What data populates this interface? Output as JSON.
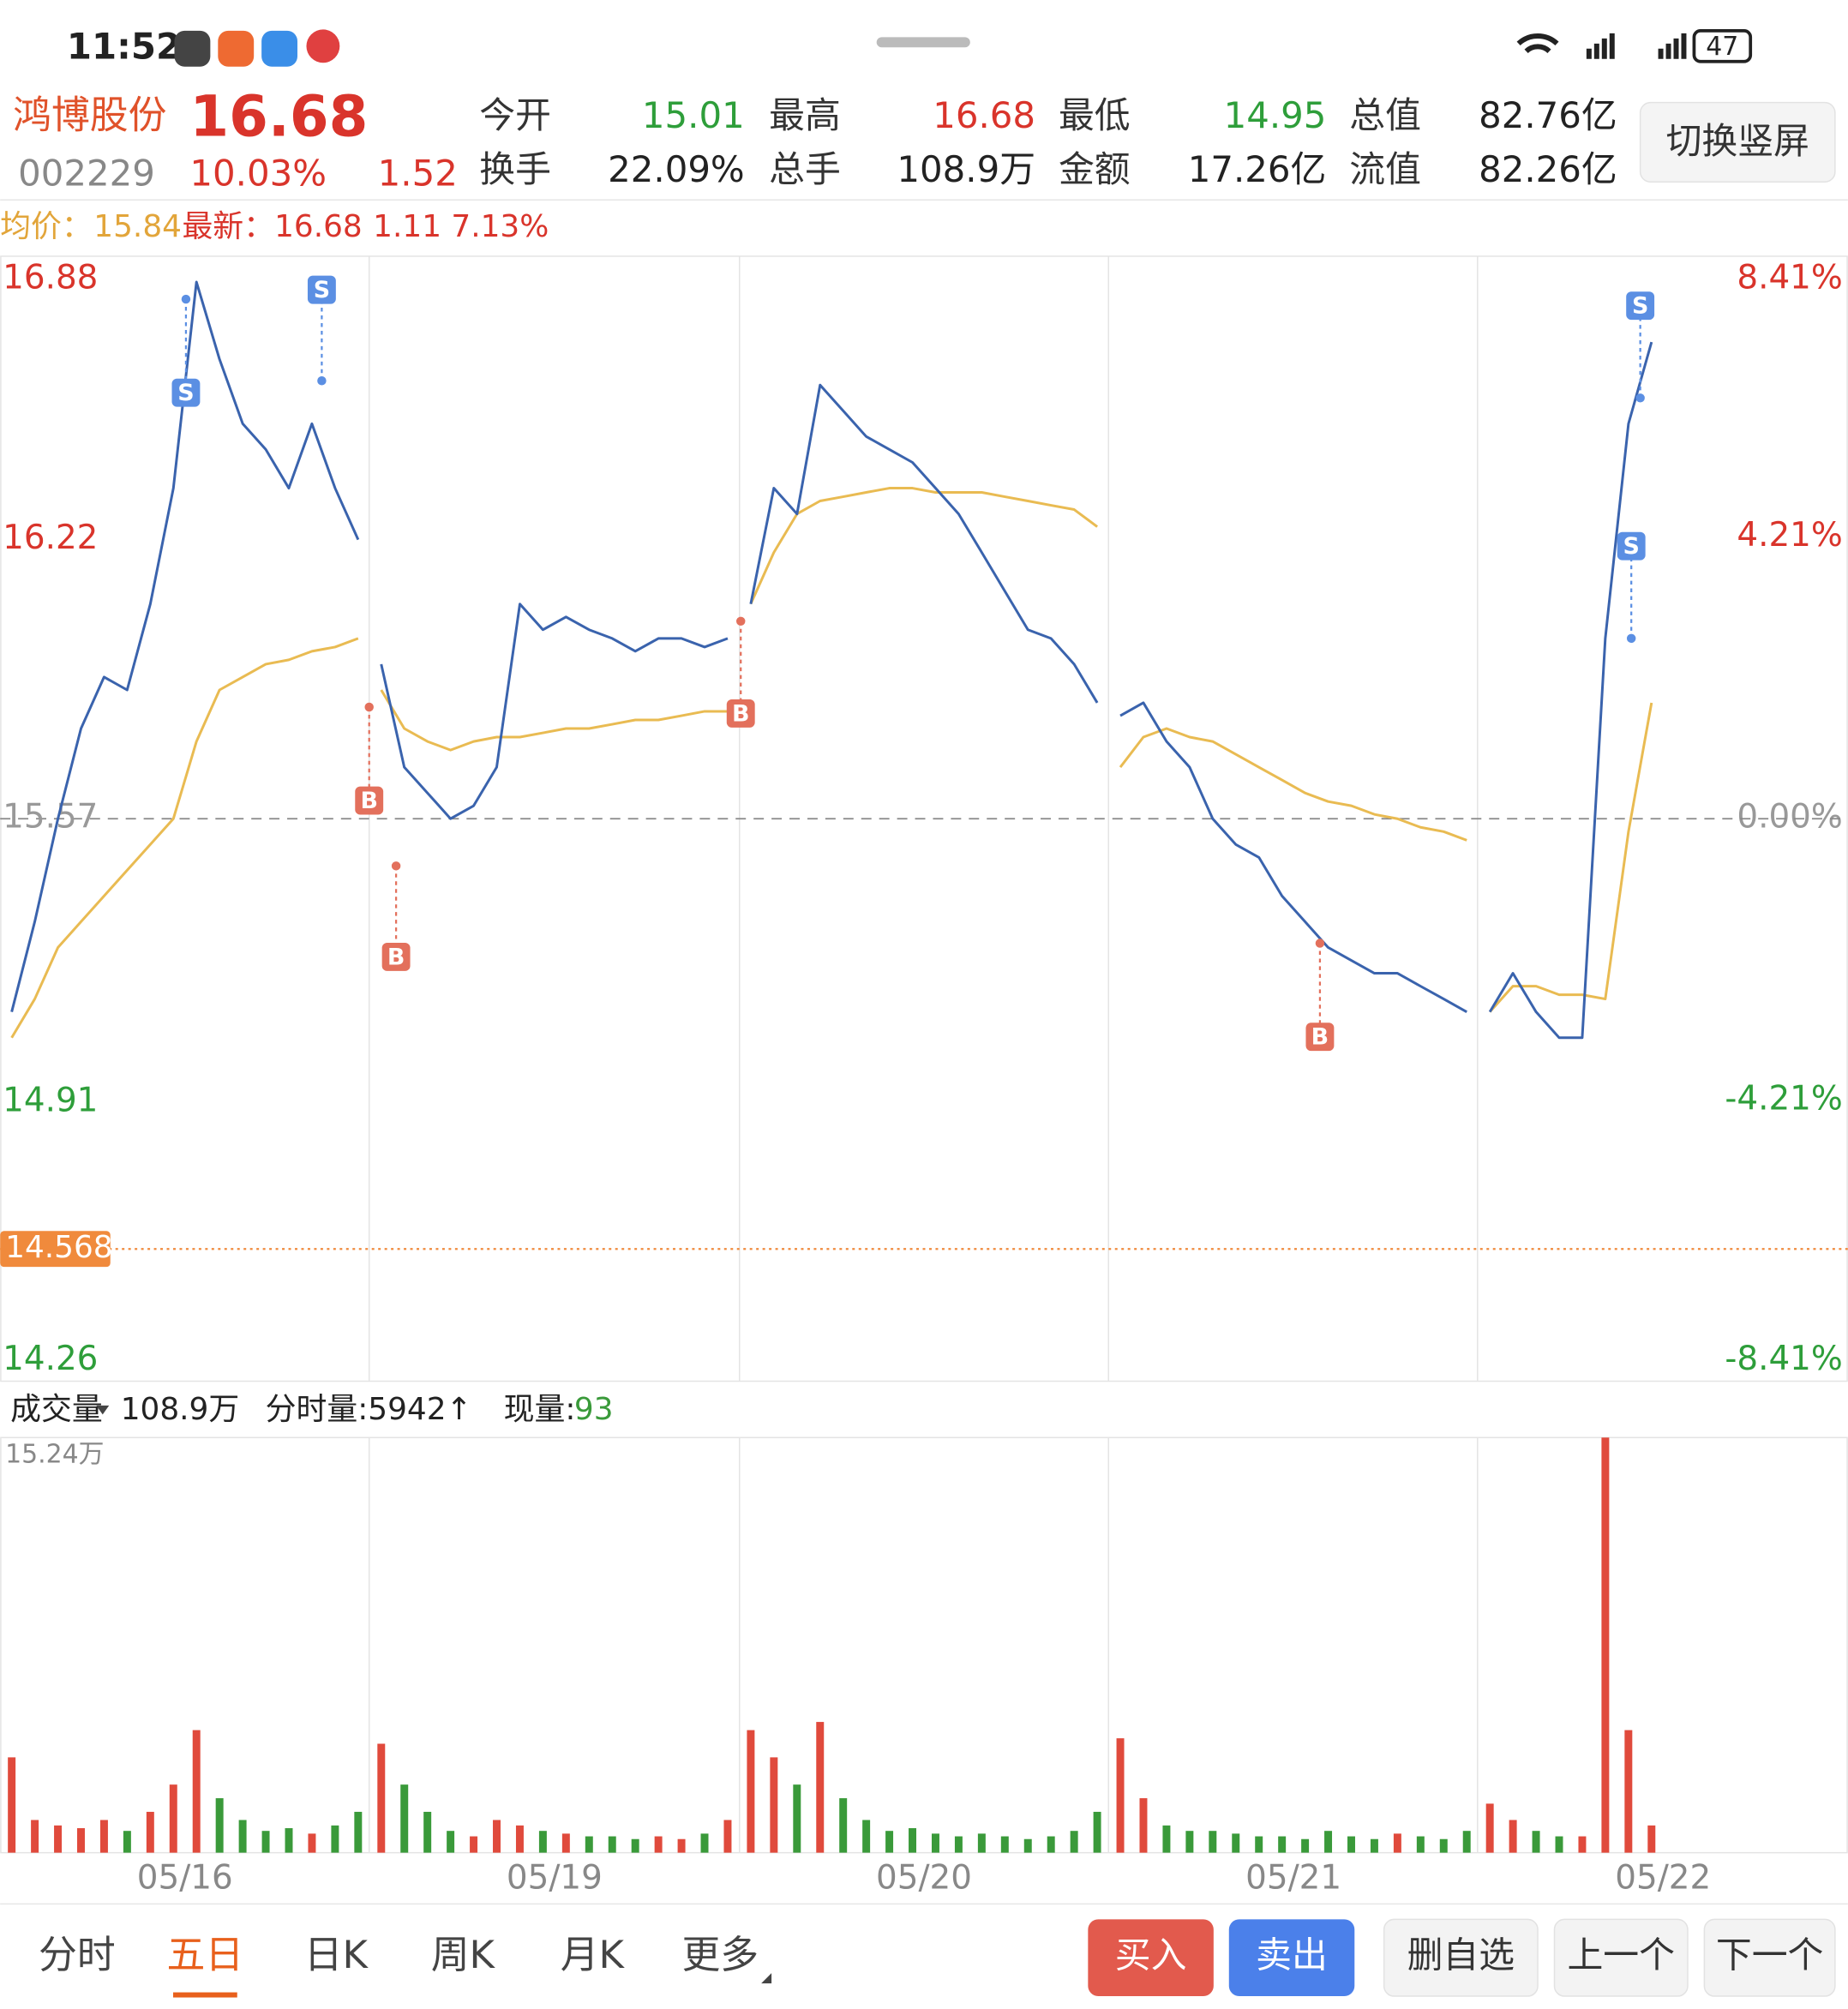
{
  "status_bar": {
    "time": "11:52",
    "battery": "47"
  },
  "quote": {
    "name": "鸿博股份",
    "price": "16.68",
    "code": "002229",
    "change_pct": "10.03%",
    "change": "1.52",
    "stats": [
      {
        "label": "今开",
        "value": "15.01"
      },
      {
        "label": "最高",
        "value": "16.68"
      },
      {
        "label": "最低",
        "value": "14.95"
      },
      {
        "label": "总值",
        "value": "82.76亿"
      },
      {
        "label": "换手",
        "value": "22.09%"
      },
      {
        "label": "总手",
        "value": "108.9万"
      },
      {
        "label": "金额",
        "value": "17.26亿"
      },
      {
        "label": "流值",
        "value": "82.26亿"
      }
    ],
    "toggle_button": "切换竖屏"
  },
  "legend": {
    "avg_label": "均价：",
    "avg": "15.84",
    "last_label": "最新：",
    "last": "16.68",
    "change": "1.11",
    "change_pct": "7.13%"
  },
  "chart_data": {
    "type": "line",
    "ylim": [
      14.26,
      16.88
    ],
    "yticks": [
      16.88,
      16.22,
      15.57,
      14.91,
      14.26
    ],
    "y2lim": [
      -8.41,
      8.41
    ],
    "y2ticks": [
      {
        "value": 8.41,
        "label": "8.41%"
      },
      {
        "value": 4.21,
        "label": "4.21%"
      },
      {
        "value": 0,
        "label": "0.00%"
      },
      {
        "value": -4.21,
        "label": "-4.21%"
      },
      {
        "value": -8.41,
        "label": "-8.41%"
      }
    ],
    "reference_line": {
      "value": 14.568,
      "label": "14.568"
    },
    "categories": [
      "05/16",
      "05/19",
      "05/20",
      "05/21",
      "05/22"
    ],
    "price_color": "#3a63ad",
    "avg_color": "#e9bb52",
    "days": [
      {
        "price": [
          15.12,
          15.33,
          15.57,
          15.78,
          15.9,
          15.87,
          16.07,
          16.34,
          16.82,
          16.64,
          16.49,
          16.43,
          16.34,
          16.49,
          16.34,
          16.22
        ],
        "avg": [
          15.06,
          15.15,
          15.27,
          15.33,
          15.39,
          15.45,
          15.51,
          15.57,
          15.75,
          15.87,
          15.9,
          15.93,
          15.94,
          15.96,
          15.97,
          15.99
        ]
      },
      {
        "price": [
          15.93,
          15.69,
          15.63,
          15.57,
          15.6,
          15.69,
          16.07,
          16.01,
          16.04,
          16.01,
          15.99,
          15.96,
          15.99,
          15.99,
          15.97,
          15.99
        ],
        "avg": [
          15.87,
          15.78,
          15.75,
          15.73,
          15.75,
          15.76,
          15.76,
          15.77,
          15.78,
          15.78,
          15.79,
          15.8,
          15.8,
          15.81,
          15.82,
          15.82
        ]
      },
      {
        "price": [
          16.07,
          16.34,
          16.28,
          16.58,
          16.52,
          16.46,
          16.43,
          16.4,
          16.34,
          16.28,
          16.19,
          16.1,
          16.01,
          15.99,
          15.93,
          15.84
        ],
        "avg": [
          16.07,
          16.19,
          16.28,
          16.31,
          16.32,
          16.33,
          16.34,
          16.34,
          16.33,
          16.33,
          16.33,
          16.32,
          16.31,
          16.3,
          16.29,
          16.25
        ]
      },
      {
        "price": [
          15.81,
          15.84,
          15.75,
          15.69,
          15.57,
          15.51,
          15.48,
          15.39,
          15.33,
          15.27,
          15.24,
          15.21,
          15.21,
          15.18,
          15.15,
          15.12
        ],
        "avg": [
          15.69,
          15.76,
          15.78,
          15.76,
          15.75,
          15.72,
          15.69,
          15.66,
          15.63,
          15.61,
          15.6,
          15.58,
          15.57,
          15.55,
          15.54,
          15.52
        ]
      },
      {
        "price": [
          15.12,
          15.21,
          15.12,
          15.06,
          15.06,
          15.99,
          16.49,
          16.68
        ],
        "avg": [
          15.12,
          15.18,
          15.18,
          15.16,
          15.16,
          15.15,
          15.54,
          15.84
        ]
      }
    ],
    "trades": [
      {
        "label": "S",
        "price": 16.78
      },
      {
        "label": "S",
        "price": 16.59
      },
      {
        "label": "B",
        "price": 15.83
      },
      {
        "label": "B",
        "price": 15.46
      },
      {
        "label": "B",
        "price": 16.03
      },
      {
        "label": "B",
        "price": 15.28
      },
      {
        "label": "S",
        "price": 16.55
      },
      {
        "label": "S",
        "price": 15.99
      }
    ],
    "buy_color": "#e3705c",
    "sell_color": "#5b8fe3",
    "reference_color": "#f08a3c"
  },
  "volume_chart": {
    "type": "bar",
    "label": "成交量",
    "total": "108.9万",
    "minute_volume": "分时量:5942↑",
    "current_label": "现量:",
    "current": "93",
    "ylim": [
      0,
      15.24
    ],
    "yticks": [
      {
        "value": 15.24,
        "label": "15.24万"
      }
    ],
    "up_color": "#e04a3c",
    "down_color": "#3a9a3a",
    "days": [
      [
        3.5,
        1.2,
        1.0,
        0.9,
        1.2,
        0.8,
        1.5,
        2.5,
        4.5,
        2.0,
        1.2,
        0.8,
        0.9,
        0.7,
        1.0,
        1.5
      ],
      [
        4.0,
        2.5,
        1.5,
        0.8,
        0.6,
        1.2,
        1.0,
        0.8,
        0.7,
        0.6,
        0.6,
        0.5,
        0.6,
        0.5,
        0.7,
        1.2
      ],
      [
        4.5,
        3.5,
        2.5,
        4.8,
        2.0,
        1.2,
        0.8,
        0.9,
        0.7,
        0.6,
        0.7,
        0.6,
        0.5,
        0.6,
        0.8,
        1.5
      ],
      [
        4.2,
        2.0,
        1.0,
        0.8,
        0.8,
        0.7,
        0.6,
        0.6,
        0.5,
        0.8,
        0.6,
        0.5,
        0.7,
        0.6,
        0.5,
        0.8
      ],
      [
        1.8,
        1.2,
        0.8,
        0.6,
        0.6,
        15.24,
        4.5,
        1.0
      ]
    ]
  },
  "tabs": {
    "items": [
      "分时",
      "五日",
      "日K",
      "周K",
      "月K",
      "更多"
    ],
    "active": 1
  },
  "buttons": {
    "buy": "买入",
    "sell": "卖出",
    "remove": "删自选",
    "prev": "上一个",
    "next": "下一个"
  }
}
